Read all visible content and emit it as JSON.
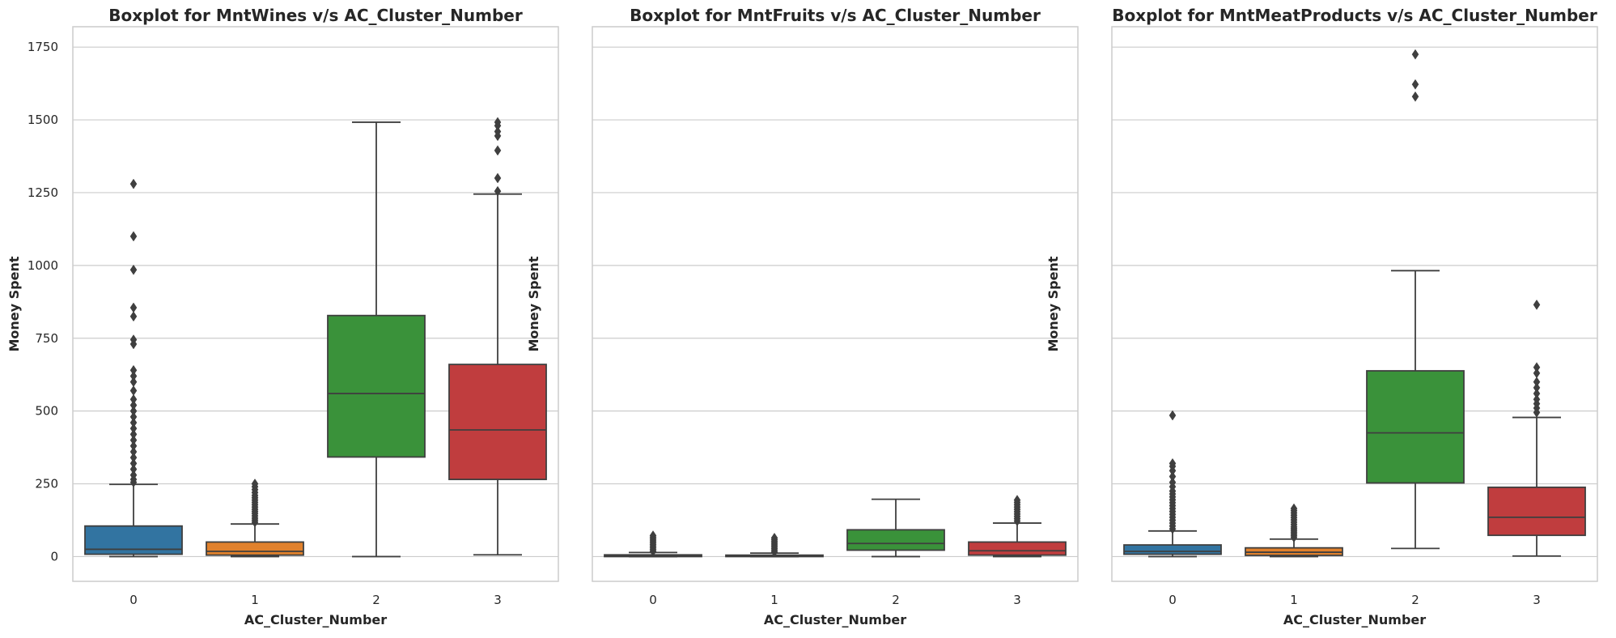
{
  "colors": {
    "cluster_fills": [
      "#3274a1",
      "#e1812c",
      "#3a923a",
      "#c03d3e"
    ],
    "grid": "#cccccc",
    "frame": "#cccccc",
    "line": "#3f3f3f",
    "text": "#262626"
  },
  "chart_data": [
    {
      "type": "box",
      "title": "Boxplot for MntWines v/s AC_Cluster_Number",
      "xlabel": "AC_Cluster_Number",
      "ylabel": "Money Spent",
      "categories": [
        "0",
        "1",
        "2",
        "3"
      ],
      "ylim": [
        -85,
        1820
      ],
      "yticks": [
        0,
        250,
        500,
        750,
        1000,
        1250,
        1500,
        1750
      ],
      "y_tick_labels": [
        "0",
        "250",
        "500",
        "750",
        "1000",
        "1250",
        "1500",
        "1750"
      ],
      "grid": true,
      "boxes": [
        {
          "category": "0",
          "whisker_low": 0,
          "q1": 8,
          "median": 25,
          "q3": 105,
          "whisker_high": 248,
          "outliers": [
            255,
            265,
            280,
            300,
            320,
            340,
            360,
            380,
            400,
            420,
            440,
            460,
            480,
            500,
            520,
            540,
            570,
            600,
            620,
            640,
            730,
            745,
            825,
            855,
            985,
            1100,
            1280
          ]
        },
        {
          "category": "1",
          "whisker_low": 0,
          "q1": 5,
          "median": 18,
          "q3": 50,
          "whisker_high": 112,
          "outliers": [
            118,
            125,
            132,
            140,
            148,
            155,
            162,
            170,
            178,
            186,
            194,
            202,
            210,
            220,
            230,
            240,
            250
          ]
        },
        {
          "category": "2",
          "whisker_low": 0,
          "q1": 342,
          "median": 560,
          "q3": 828,
          "whisker_high": 1492,
          "outliers": []
        },
        {
          "category": "3",
          "whisker_low": 6,
          "q1": 265,
          "median": 435,
          "q3": 660,
          "whisker_high": 1245,
          "outliers": [
            1255,
            1300,
            1395,
            1445,
            1460,
            1480,
            1492
          ]
        }
      ]
    },
    {
      "type": "box",
      "title": "Boxplot for MntFruits v/s AC_Cluster_Number",
      "xlabel": "AC_Cluster_Number",
      "ylabel": "Money Spent",
      "categories": [
        "0",
        "1",
        "2",
        "3"
      ],
      "ylim": [
        -85,
        1820
      ],
      "yticks": [
        0,
        250,
        500,
        750,
        1000,
        1250,
        1500,
        1750
      ],
      "y_tick_labels": [
        "",
        "",
        "",
        "",
        "",
        "",
        "",
        ""
      ],
      "grid": true,
      "boxes": [
        {
          "category": "0",
          "whisker_low": 0,
          "q1": 0,
          "median": 2,
          "q3": 6,
          "whisker_high": 14,
          "outliers": [
            18,
            24,
            30,
            36,
            42,
            48,
            54,
            60,
            66,
            72
          ]
        },
        {
          "category": "1",
          "whisker_low": 0,
          "q1": 0,
          "median": 2,
          "q3": 5,
          "whisker_high": 12,
          "outliers": [
            16,
            22,
            28,
            34,
            40,
            46,
            52,
            58,
            64
          ]
        },
        {
          "category": "2",
          "whisker_low": 0,
          "q1": 22,
          "median": 45,
          "q3": 92,
          "whisker_high": 197,
          "outliers": []
        },
        {
          "category": "3",
          "whisker_low": 0,
          "q1": 5,
          "median": 20,
          "q3": 50,
          "whisker_high": 115,
          "outliers": [
            122,
            130,
            138,
            146,
            154,
            162,
            170,
            178,
            186,
            194
          ]
        }
      ]
    },
    {
      "type": "box",
      "title": "Boxplot for MntMeatProducts v/s AC_Cluster_Number",
      "xlabel": "AC_Cluster_Number",
      "ylabel": "Money Spent",
      "categories": [
        "0",
        "1",
        "2",
        "3"
      ],
      "ylim": [
        -85,
        1820
      ],
      "yticks": [
        0,
        250,
        500,
        750,
        1000,
        1250,
        1500,
        1750
      ],
      "y_tick_labels": [
        "",
        "",
        "",
        "",
        "",
        "",
        "",
        ""
      ],
      "grid": true,
      "boxes": [
        {
          "category": "0",
          "whisker_low": 0,
          "q1": 8,
          "median": 18,
          "q3": 40,
          "whisker_high": 88,
          "outliers": [
            95,
            105,
            115,
            125,
            135,
            145,
            155,
            165,
            175,
            185,
            195,
            205,
            215,
            225,
            240,
            255,
            275,
            295,
            310,
            320,
            485
          ]
        },
        {
          "category": "1",
          "whisker_low": 0,
          "q1": 4,
          "median": 15,
          "q3": 30,
          "whisker_high": 60,
          "outliers": [
            66,
            72,
            78,
            84,
            90,
            96,
            102,
            110,
            118,
            126,
            134,
            142,
            150,
            158,
            165
          ]
        },
        {
          "category": "2",
          "whisker_low": 28,
          "q1": 253,
          "median": 425,
          "q3": 638,
          "whisker_high": 982,
          "outliers": [
            1580,
            1622,
            1725
          ]
        },
        {
          "category": "3",
          "whisker_low": 2,
          "q1": 73,
          "median": 135,
          "q3": 238,
          "whisker_high": 478,
          "outliers": [
            495,
            510,
            525,
            540,
            560,
            580,
            600,
            630,
            650,
            865
          ]
        }
      ]
    }
  ]
}
